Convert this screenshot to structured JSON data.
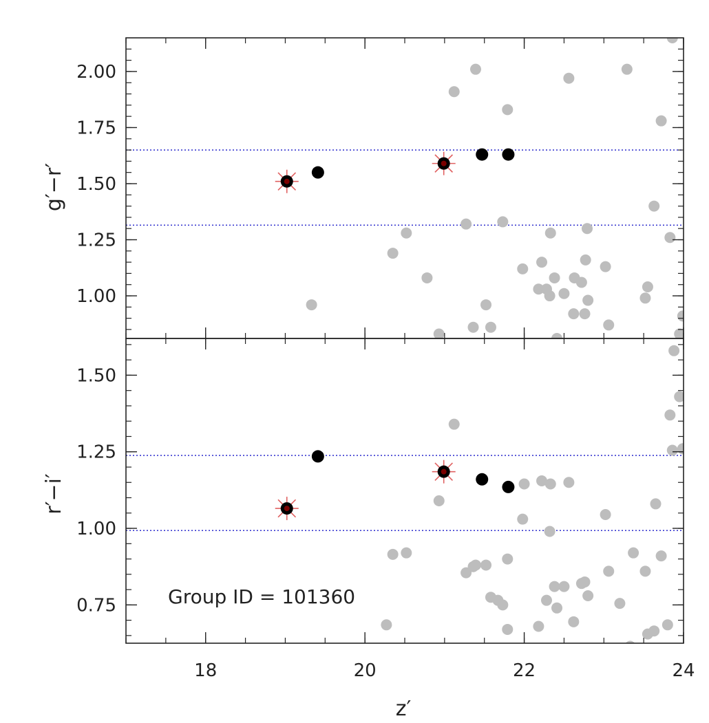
{
  "chart_data": [
    {
      "type": "scatter",
      "panel": "top",
      "ylabel": "g′−r′",
      "xlim": [
        17,
        24
      ],
      "ylim": [
        0.81,
        2.15
      ],
      "yticks": [
        1.0,
        1.25,
        1.5,
        1.75,
        2.0
      ],
      "ytick_labels": [
        "1.00",
        "1.25",
        "1.50",
        "1.75",
        "2.00"
      ],
      "xticks": [
        18,
        20,
        22,
        24
      ],
      "grid": false,
      "hlines": [
        1.65,
        1.315
      ],
      "colors": {
        "field": "#bdbdbd",
        "member": "#000000",
        "bcg_cross": "#e06060",
        "bcg_fill": "#7a0000",
        "hline": "#3a3ad0"
      },
      "series": [
        {
          "role": "field",
          "x": [
            19.33,
            20.35,
            20.52,
            20.78,
            20.93,
            21.12,
            21.27,
            21.36,
            21.39,
            21.52,
            21.58,
            21.73,
            21.79,
            21.98,
            22.18,
            22.22,
            22.28,
            22.32,
            22.33,
            22.38,
            22.41,
            22.5,
            22.56,
            22.62,
            22.63,
            22.72,
            22.76,
            22.77,
            22.8,
            22.79,
            23.02,
            23.06,
            23.29,
            23.52,
            23.55,
            23.63,
            23.72,
            23.83,
            23.86,
            23.95,
            23.99
          ],
          "y": [
            0.96,
            1.19,
            1.28,
            1.08,
            0.83,
            1.91,
            1.32,
            0.86,
            2.01,
            0.96,
            0.86,
            1.33,
            1.83,
            1.12,
            1.03,
            1.15,
            1.03,
            1.0,
            1.28,
            1.08,
            0.81,
            1.01,
            1.97,
            0.92,
            1.08,
            1.06,
            0.92,
            1.16,
            0.98,
            1.3,
            1.13,
            0.87,
            2.01,
            0.99,
            1.04,
            1.4,
            1.78,
            1.26,
            2.15,
            0.83,
            0.91
          ]
        },
        {
          "role": "member",
          "x": [
            19.41,
            21.47,
            21.8
          ],
          "y": [
            1.55,
            1.63,
            1.63
          ]
        },
        {
          "role": "bcg",
          "x": [
            19.02,
            20.99
          ],
          "y": [
            1.51,
            1.59
          ]
        }
      ]
    },
    {
      "type": "scatter",
      "panel": "bottom",
      "xlabel": "z′",
      "ylabel": "r′−i′",
      "xlim": [
        17,
        24
      ],
      "ylim": [
        0.625,
        1.62
      ],
      "xticks": [
        18,
        20,
        22,
        24
      ],
      "xtick_labels": [
        "18",
        "20",
        "22",
        "24"
      ],
      "yticks": [
        0.75,
        1.0,
        1.25,
        1.5
      ],
      "ytick_labels": [
        "0.75",
        "1.00",
        "1.25",
        "1.50"
      ],
      "grid": false,
      "hlines": [
        1.238,
        0.993
      ],
      "annotation": "Group ID  =  101360",
      "colors": {
        "field": "#bdbdbd",
        "member": "#000000",
        "bcg_cross": "#e06060",
        "bcg_fill": "#7a0000",
        "hline": "#3a3ad0"
      },
      "series": [
        {
          "role": "field",
          "x": [
            20.27,
            20.35,
            20.52,
            20.93,
            21.12,
            21.27,
            21.36,
            21.39,
            21.52,
            21.58,
            21.67,
            21.73,
            21.79,
            21.79,
            21.98,
            22.0,
            22.18,
            22.22,
            22.28,
            22.32,
            22.33,
            22.38,
            22.41,
            22.5,
            22.56,
            22.62,
            22.72,
            22.76,
            22.8,
            23.02,
            23.06,
            23.2,
            23.33,
            23.37,
            23.52,
            23.55,
            23.63,
            23.65,
            23.72,
            23.8,
            23.83,
            23.86,
            23.88,
            23.95,
            23.99
          ],
          "y": [
            0.685,
            0.915,
            0.92,
            1.09,
            1.34,
            0.855,
            0.875,
            0.88,
            0.88,
            0.775,
            0.765,
            0.75,
            0.9,
            0.67,
            1.03,
            1.145,
            0.68,
            1.155,
            0.765,
            0.99,
            1.145,
            0.81,
            0.74,
            0.81,
            1.15,
            0.695,
            0.82,
            0.825,
            0.78,
            1.045,
            0.86,
            0.755,
            0.615,
            0.92,
            0.86,
            0.655,
            0.665,
            1.08,
            0.91,
            0.685,
            1.37,
            1.255,
            1.58,
            1.43,
            1.26
          ]
        },
        {
          "role": "member",
          "x": [
            19.41,
            21.47,
            21.8
          ],
          "y": [
            1.235,
            1.16,
            1.135
          ]
        },
        {
          "role": "bcg",
          "x": [
            19.02,
            20.99
          ],
          "y": [
            1.065,
            1.185
          ]
        }
      ]
    }
  ]
}
